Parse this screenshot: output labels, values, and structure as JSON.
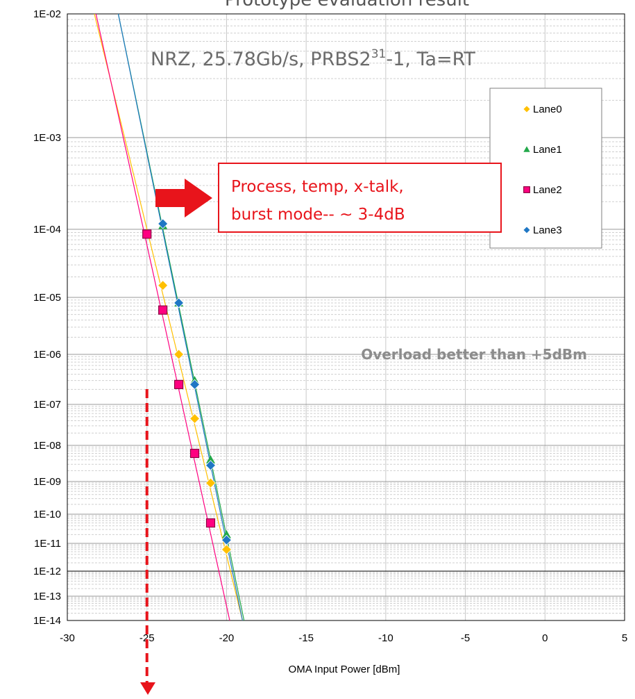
{
  "chart_data": {
    "type": "scatter",
    "title": "Prototype evaluation result",
    "condition_text": "NRZ, 25.78Gb/s, PRBS2",
    "condition_sup": "31",
    "condition_rest": "-1, Ta=RT",
    "xlabel": "OMA Input Power [dBm]",
    "ylabel": "",
    "xlim": [
      -30,
      5
    ],
    "xticks": [
      "-30",
      "-25",
      "-20",
      "-15",
      "-10",
      "-5",
      "0",
      "5"
    ],
    "yticks": [
      "1E-02",
      "1E-03",
      "1E-04",
      "1E-05",
      "1E-06",
      "1E-07",
      "1E-08",
      "1E-09",
      "1E-10",
      "1E-11",
      "1E-12",
      "1E-13",
      "1E-14"
    ],
    "y_scale": "BER (Q-scale)",
    "grid": true,
    "legend_position": "top-right",
    "series": [
      {
        "name": "Lane0",
        "color": "#ffc000",
        "marker": "diamond",
        "points": [
          [
            -24,
            1.5e-05
          ],
          [
            -23,
            1e-06
          ],
          [
            -22,
            4.5e-08
          ],
          [
            -21,
            9e-10
          ],
          [
            -20,
            6e-12
          ]
        ],
        "fit": [
          [
            -28.3,
            0.01
          ],
          [
            -19,
            1e-14
          ]
        ]
      },
      {
        "name": "Lane1",
        "color": "#22a84a",
        "marker": "triangle",
        "points": [
          [
            -24,
            0.00011
          ],
          [
            -23,
            8e-06
          ],
          [
            -22,
            3e-07
          ],
          [
            -21,
            4e-09
          ],
          [
            -20,
            2e-11
          ]
        ],
        "fit": [
          [
            -26.8,
            0.01
          ],
          [
            -18.9,
            1e-14
          ]
        ]
      },
      {
        "name": "Lane2",
        "color": "#ff0080",
        "marker": "square",
        "points": [
          [
            -25,
            8.5e-05
          ],
          [
            -24,
            6e-06
          ],
          [
            -23,
            2.5e-07
          ],
          [
            -22,
            6e-09
          ],
          [
            -21,
            5e-11
          ]
        ],
        "fit": [
          [
            -28.2,
            0.01
          ],
          [
            -19.8,
            1e-14
          ]
        ]
      },
      {
        "name": "Lane3",
        "color": "#1f77c4",
        "marker": "diamond",
        "points": [
          [
            -24,
            0.000115
          ],
          [
            -23,
            8e-06
          ],
          [
            -22,
            2.5e-07
          ],
          [
            -21,
            2.8e-09
          ],
          [
            -20,
            1.3e-11
          ]
        ],
        "fit": [
          [
            -26.8,
            0.01
          ],
          [
            -19,
            1e-14
          ]
        ]
      }
    ],
    "annotations": {
      "callout_line1": "Process, temp, x-talk,",
      "callout_line2": "burst mode-- ~ 3-4dB",
      "overload": "Overload better than +5dBm",
      "marker_x": -25
    },
    "colors": {
      "callout": "#e8141b",
      "arrow": "#e8141b",
      "grid": "#bfbfbf"
    }
  }
}
